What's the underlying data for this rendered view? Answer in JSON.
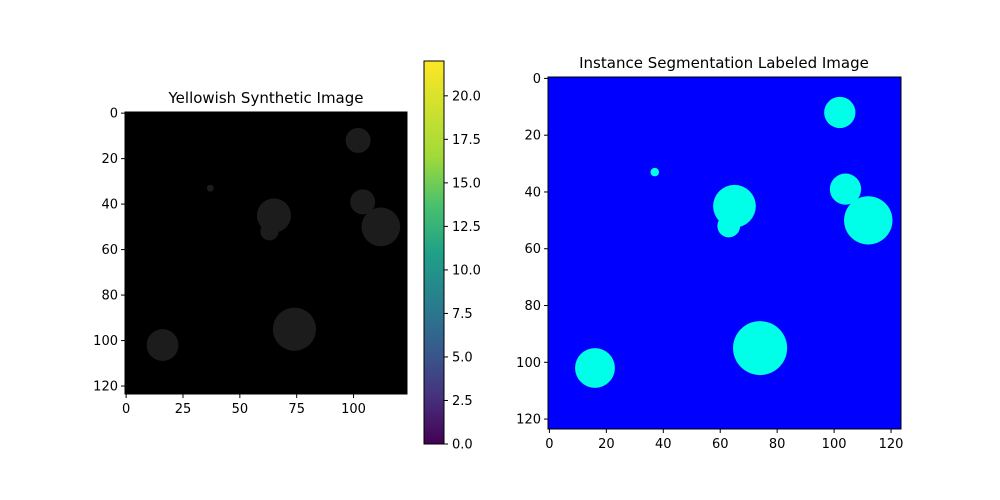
{
  "chart_data": [
    {
      "type": "heatmap",
      "title": "Yellowish Synthetic Image",
      "x_ticks": [
        0,
        25,
        50,
        75,
        100
      ],
      "y_ticks": [
        0,
        20,
        40,
        60,
        80,
        100,
        120
      ],
      "xlim": [
        -0.5,
        123.5
      ],
      "ylim": [
        123.5,
        -0.5
      ],
      "background_color": "#000000",
      "blob_color": "#1c1c1c",
      "blobs": [
        {
          "cx": 16,
          "cy": 102,
          "r": 7
        },
        {
          "cx": 37,
          "cy": 33,
          "r": 1.5
        },
        {
          "cx": 65,
          "cy": 45,
          "r": 7.5
        },
        {
          "cx": 63,
          "cy": 52,
          "r": 4
        },
        {
          "cx": 74,
          "cy": 95,
          "r": 9.5
        },
        {
          "cx": 102,
          "cy": 12,
          "r": 5.5
        },
        {
          "cx": 104,
          "cy": 39,
          "r": 5.5
        },
        {
          "cx": 112,
          "cy": 50,
          "r": 8.5
        }
      ],
      "colorbar": {
        "colormap": "viridis",
        "range": [
          0,
          22
        ],
        "ticks": [
          "0.0",
          "2.5",
          "5.0",
          "7.5",
          "10.0",
          "12.5",
          "15.0",
          "17.5",
          "20.0"
        ]
      }
    },
    {
      "type": "heatmap",
      "title": "Instance Segmentation Labeled Image",
      "x_ticks": [
        0,
        20,
        40,
        60,
        80,
        100,
        120
      ],
      "y_ticks": [
        0,
        20,
        40,
        60,
        80,
        100,
        120
      ],
      "xlim": [
        -0.5,
        123.5
      ],
      "ylim": [
        123.5,
        -0.5
      ],
      "background_color": "#0000ff",
      "blob_color": "#00ffe8",
      "blobs": [
        {
          "cx": 16,
          "cy": 102,
          "r": 7
        },
        {
          "cx": 37,
          "cy": 33,
          "r": 1.5
        },
        {
          "cx": 65,
          "cy": 45,
          "r": 7.5
        },
        {
          "cx": 63,
          "cy": 52,
          "r": 4
        },
        {
          "cx": 74,
          "cy": 95,
          "r": 9.5
        },
        {
          "cx": 102,
          "cy": 12,
          "r": 5.5
        },
        {
          "cx": 104,
          "cy": 39,
          "r": 5.5
        },
        {
          "cx": 112,
          "cy": 50,
          "r": 8.5
        }
      ]
    }
  ]
}
